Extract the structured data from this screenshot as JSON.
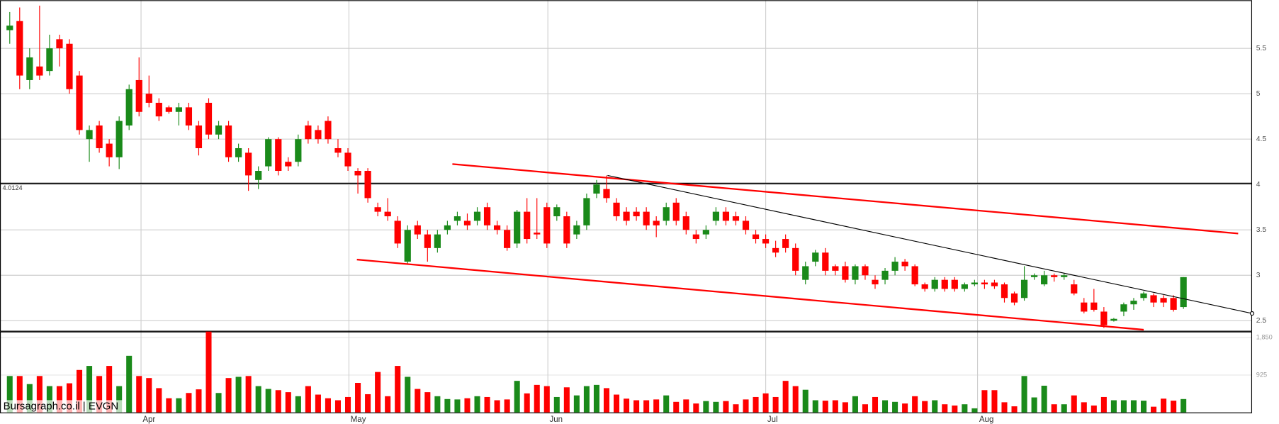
{
  "chart_data": {
    "type": "candlestick",
    "open": [
      5.7,
      5.8,
      5.15,
      5.3,
      5.25,
      5.6,
      5.55,
      5.2,
      4.5,
      4.65,
      4.45,
      4.3,
      4.65,
      5.15,
      5.0,
      4.9,
      4.85,
      4.8,
      4.85,
      4.65,
      4.9,
      4.55,
      4.65,
      4.3,
      4.35,
      4.05,
      4.2,
      4.5,
      4.25,
      4.25,
      4.65,
      4.6,
      4.7,
      4.4,
      4.35,
      4.15,
      4.15,
      3.75,
      3.7,
      3.6,
      3.15,
      3.55,
      3.45,
      3.3,
      3.5,
      3.6,
      3.6,
      3.6,
      3.75,
      3.55,
      3.5,
      3.35,
      3.7,
      3.47,
      3.75,
      3.65,
      3.65,
      3.45,
      3.55,
      3.9,
      3.95,
      3.8,
      3.7,
      3.7,
      3.7,
      3.6,
      3.6,
      3.8,
      3.65,
      3.45,
      3.45,
      3.6,
      3.7,
      3.65,
      3.6,
      3.45,
      3.4,
      3.3,
      3.4,
      3.3,
      2.95,
      3.15,
      3.25,
      3.1,
      3.1,
      2.95,
      3.1,
      2.95,
      2.95,
      3.05,
      3.15,
      3.1,
      2.9,
      2.85,
      2.95,
      2.95,
      2.85,
      2.9,
      2.92,
      2.92,
      2.9,
      2.8,
      2.75,
      2.98,
      2.9,
      3.0,
      2.98,
      2.9,
      2.7,
      2.7,
      2.6,
      2.5,
      2.6,
      2.68,
      2.75,
      2.78,
      2.75,
      2.75,
      2.65
    ],
    "high": [
      5.9,
      5.95,
      5.5,
      5.97,
      5.65,
      5.65,
      5.6,
      5.25,
      4.65,
      4.7,
      4.5,
      4.75,
      5.1,
      5.4,
      5.2,
      4.95,
      4.87,
      4.9,
      4.9,
      4.7,
      4.95,
      4.7,
      4.7,
      4.45,
      4.4,
      4.2,
      4.52,
      4.52,
      4.3,
      4.55,
      4.7,
      4.65,
      4.75,
      4.5,
      4.4,
      4.18,
      4.18,
      3.8,
      3.85,
      3.65,
      3.55,
      3.6,
      3.5,
      3.5,
      3.6,
      3.7,
      3.68,
      3.75,
      3.8,
      3.6,
      3.55,
      3.72,
      3.85,
      3.85,
      3.8,
      3.78,
      3.7,
      3.6,
      3.9,
      4.05,
      4.1,
      3.85,
      3.75,
      3.75,
      3.75,
      3.65,
      3.8,
      3.85,
      3.7,
      3.5,
      3.55,
      3.75,
      3.75,
      3.7,
      3.65,
      3.5,
      3.45,
      3.38,
      3.45,
      3.35,
      3.15,
      3.28,
      3.3,
      3.12,
      3.15,
      3.12,
      3.12,
      3.0,
      3.08,
      3.2,
      3.18,
      3.12,
      2.92,
      2.98,
      2.98,
      2.98,
      2.92,
      2.95,
      2.95,
      2.95,
      2.92,
      2.82,
      3.1,
      3.02,
      3.05,
      3.02,
      3.02,
      2.95,
      2.75,
      2.85,
      2.65,
      2.53,
      2.7,
      2.75,
      2.82,
      2.8,
      2.78,
      2.78,
      2.98
    ],
    "low": [
      5.55,
      5.05,
      5.05,
      5.15,
      5.2,
      5.3,
      5.0,
      4.55,
      4.25,
      4.35,
      4.2,
      4.17,
      4.6,
      4.75,
      4.85,
      4.7,
      4.78,
      4.65,
      4.6,
      4.32,
      4.5,
      4.5,
      4.25,
      4.25,
      3.93,
      3.95,
      4.15,
      4.1,
      4.15,
      4.2,
      4.45,
      4.45,
      4.45,
      4.3,
      4.15,
      3.9,
      3.8,
      3.65,
      3.6,
      3.3,
      3.12,
      3.4,
      3.15,
      3.25,
      3.45,
      3.55,
      3.5,
      3.55,
      3.5,
      3.45,
      3.27,
      3.3,
      3.35,
      3.4,
      3.3,
      3.6,
      3.3,
      3.4,
      3.5,
      3.85,
      3.8,
      3.6,
      3.55,
      3.6,
      3.5,
      3.42,
      3.55,
      3.55,
      3.45,
      3.35,
      3.4,
      3.55,
      3.55,
      3.55,
      3.45,
      3.35,
      3.3,
      3.2,
      3.25,
      3.0,
      2.9,
      3.1,
      3.0,
      3.0,
      2.92,
      2.9,
      2.95,
      2.85,
      2.9,
      3.0,
      3.05,
      2.88,
      2.82,
      2.82,
      2.82,
      2.82,
      2.82,
      2.88,
      2.85,
      2.85,
      2.7,
      2.67,
      2.72,
      2.95,
      2.88,
      2.93,
      2.95,
      2.78,
      2.58,
      2.6,
      2.42,
      2.49,
      2.55,
      2.62,
      2.72,
      2.65,
      2.65,
      2.6,
      2.63
    ],
    "close": [
      5.75,
      5.2,
      5.4,
      5.2,
      5.5,
      5.5,
      5.05,
      4.6,
      4.6,
      4.4,
      4.3,
      4.7,
      5.05,
      4.8,
      4.9,
      4.75,
      4.8,
      4.85,
      4.65,
      4.4,
      4.55,
      4.65,
      4.3,
      4.4,
      4.1,
      4.15,
      4.5,
      4.15,
      4.2,
      4.5,
      4.5,
      4.5,
      4.5,
      4.35,
      4.2,
      4.1,
      3.85,
      3.7,
      3.65,
      3.35,
      3.5,
      3.45,
      3.3,
      3.45,
      3.55,
      3.65,
      3.55,
      3.7,
      3.55,
      3.5,
      3.3,
      3.7,
      3.4,
      3.45,
      3.35,
      3.75,
      3.35,
      3.55,
      3.85,
      4.0,
      3.85,
      3.65,
      3.6,
      3.65,
      3.55,
      3.55,
      3.75,
      3.6,
      3.5,
      3.4,
      3.5,
      3.7,
      3.6,
      3.6,
      3.5,
      3.4,
      3.35,
      3.25,
      3.3,
      3.05,
      3.1,
      3.25,
      3.05,
      3.05,
      2.95,
      3.1,
      3.0,
      2.9,
      3.05,
      3.15,
      3.1,
      2.9,
      2.85,
      2.95,
      2.85,
      2.85,
      2.9,
      2.92,
      2.9,
      2.88,
      2.75,
      2.7,
      2.95,
      3.0,
      3.0,
      2.98,
      3.0,
      2.8,
      2.6,
      2.62,
      2.45,
      2.52,
      2.68,
      2.72,
      2.8,
      2.7,
      2.7,
      2.62,
      2.98
    ],
    "volume": [
      900,
      900,
      700,
      900,
      650,
      650,
      720,
      1050,
      1150,
      900,
      1150,
      650,
      1400,
      900,
      850,
      600,
      350,
      350,
      480,
      570,
      2000,
      480,
      850,
      880,
      900,
      650,
      580,
      550,
      500,
      400,
      650,
      440,
      350,
      300,
      380,
      730,
      450,
      1000,
      400,
      1150,
      880,
      580,
      500,
      400,
      330,
      320,
      350,
      400,
      380,
      300,
      320,
      780,
      470,
      680,
      650,
      380,
      620,
      420,
      650,
      680,
      600,
      440,
      340,
      300,
      300,
      320,
      420,
      260,
      320,
      220,
      280,
      260,
      280,
      200,
      320,
      380,
      470,
      380,
      780,
      650,
      560,
      300,
      290,
      300,
      250,
      400,
      200,
      380,
      300,
      260,
      220,
      400,
      280,
      300,
      200,
      170,
      200,
      100,
      550,
      550,
      250,
      150,
      900,
      370,
      660,
      200,
      200,
      420,
      250,
      170,
      380,
      300,
      300,
      300,
      290,
      140,
      340,
      290,
      330
    ],
    "up_color": "#1a8a1a",
    "down_color": "#ff0000",
    "xlim": [
      -0.98,
      124.9
    ],
    "xticks": [
      {
        "value": 13.2,
        "label": "Apr"
      },
      {
        "value": 34.1,
        "label": "May"
      },
      {
        "value": 54.1,
        "label": "Jun"
      },
      {
        "value": 76.0,
        "label": "Jul"
      },
      {
        "value": 97.3,
        "label": "Aug"
      }
    ],
    "ylim": [
      2.38,
      6.03
    ],
    "yticks": [
      2.5,
      3,
      3.5,
      4,
      4.5,
      5,
      5.5
    ],
    "volume_ylim": [
      0,
      2000
    ],
    "volume_yticks": [
      925,
      {
        "value": 1850,
        "label": "1,850"
      }
    ],
    "level": 4.0124,
    "trendlines": [
      {
        "color": "#ff0000",
        "x": [
          44.5,
          123.5
        ],
        "y": [
          4.225,
          3.46
        ]
      },
      {
        "color": "#ff0000",
        "x": [
          34.9,
          114.0
        ],
        "y": [
          3.173,
          2.4
        ]
      },
      {
        "color": "#000000",
        "x": [
          60.1,
          124.9
        ],
        "y": [
          4.1,
          2.58
        ]
      }
    ],
    "grid": true,
    "watermark": "Bursagraph.co.il | EVGN"
  }
}
